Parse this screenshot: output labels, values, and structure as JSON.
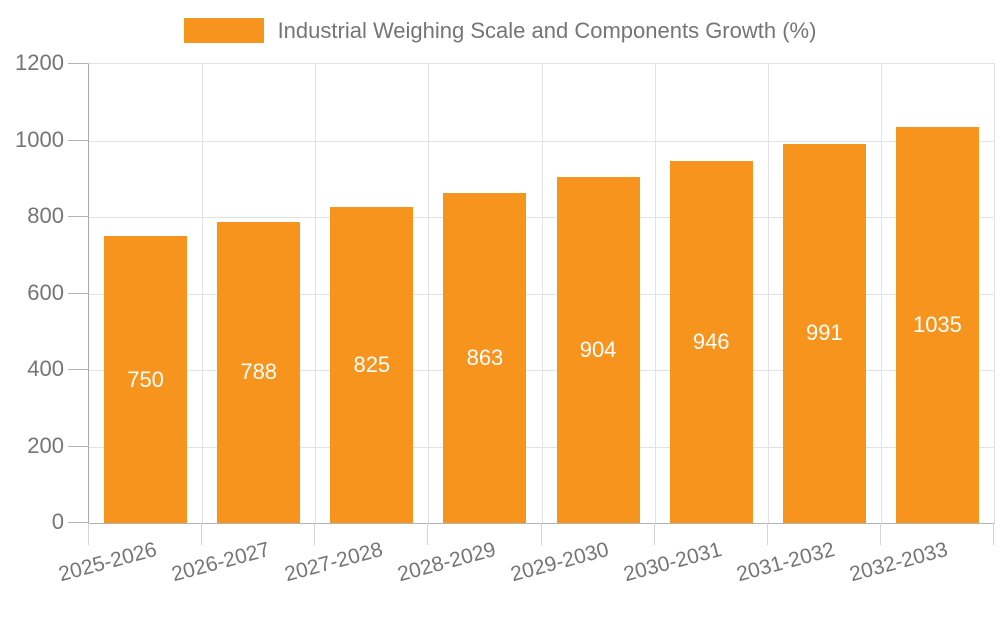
{
  "chart_data": {
    "type": "bar",
    "title": "Industrial Weighing Scale and Components Growth (%)",
    "legend_entries": [
      "Industrial Weighing Scale and Components Growth (%)"
    ],
    "legend_position": "top-center",
    "categories": [
      "2025-2026",
      "2026-2027",
      "2027-2028",
      "2028-2029",
      "2029-2030",
      "2030-2031",
      "2031-2032",
      "2032-2033"
    ],
    "values": [
      750,
      788,
      825,
      863,
      904,
      946,
      991,
      1035
    ],
    "xlabel": "",
    "ylabel": "",
    "ylim": [
      0,
      1200
    ],
    "yticks": [
      0,
      200,
      400,
      600,
      800,
      1000,
      1200
    ],
    "grid": "horizontal-and-vertical",
    "colors": {
      "bar": "#F7941E",
      "bar_label": "#FFFFFF",
      "axis_text": "#757575",
      "axis_line": "#ADADAD",
      "gridline": "#E2E2E2"
    }
  }
}
